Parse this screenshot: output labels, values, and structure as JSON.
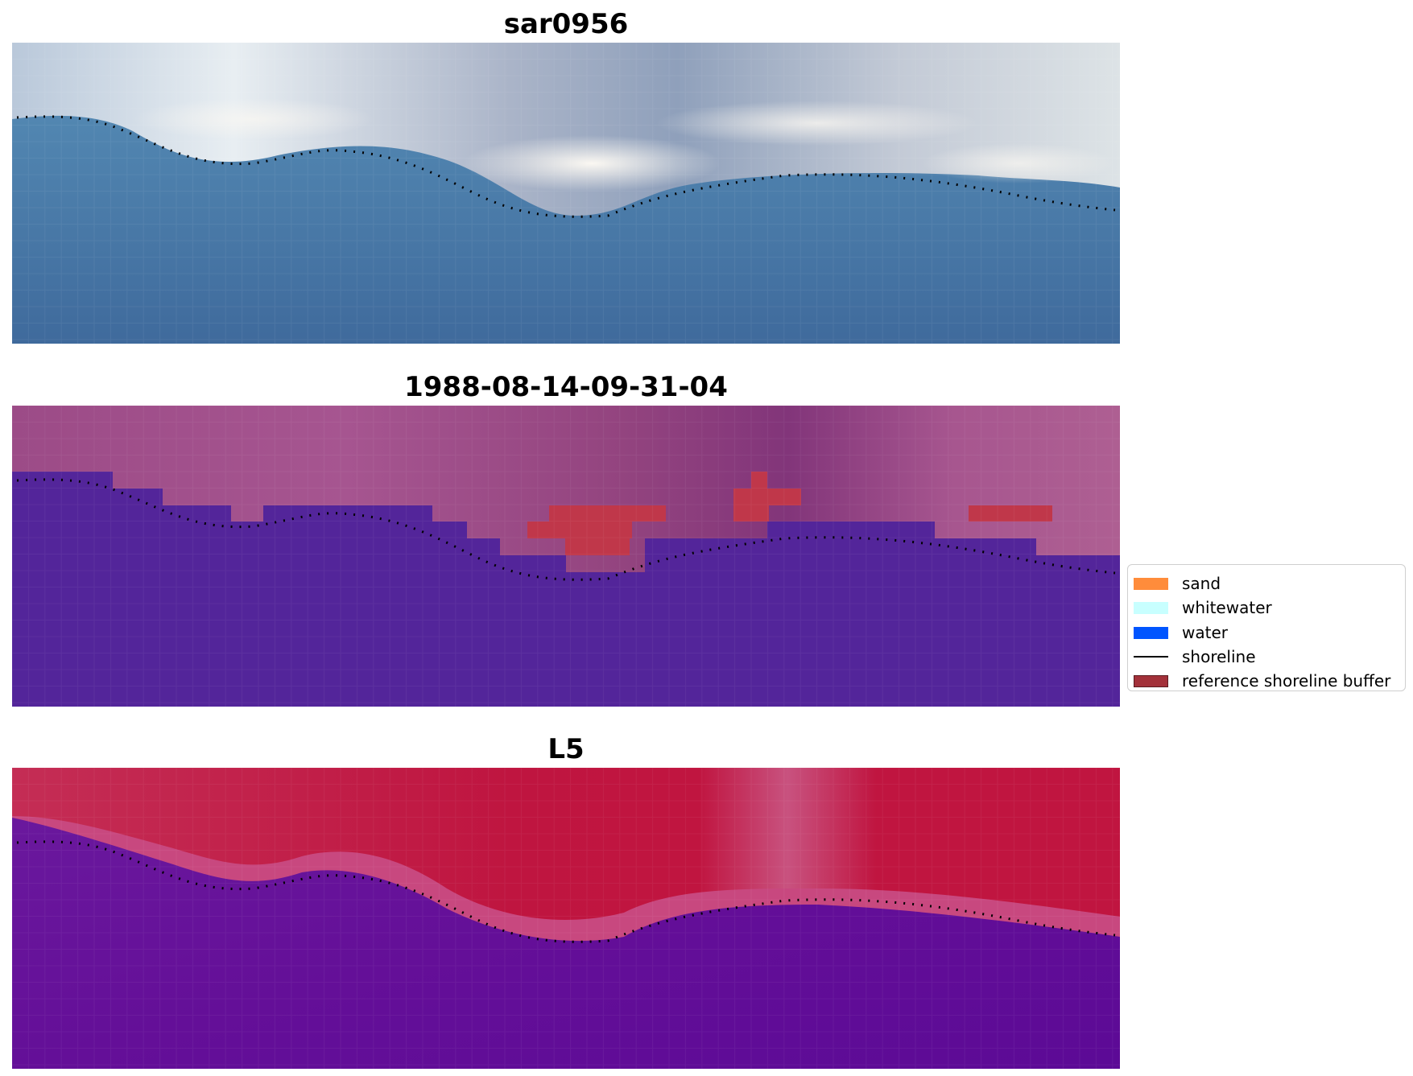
{
  "figure": {
    "panels": [
      {
        "title": "sar0956",
        "kind": "rgb-composite",
        "palette": {
          "land_light": "#e9eef3",
          "land_mid": "#a9b6cc",
          "cloud": "#f6f3ef",
          "water": "#4f83ad",
          "water_deep": "#3f6a9c"
        }
      },
      {
        "title": "1988-08-14-09-31-04",
        "kind": "classified",
        "palette": {
          "land": "#a2508c",
          "land_dark": "#8c3f7c",
          "water": "#53259a",
          "buffer": "#c0374a"
        }
      },
      {
        "title": "L5",
        "kind": "index",
        "palette": {
          "high": "#c01540",
          "mid": "#c6467a",
          "low": "#6a139a",
          "low_dark": "#5c0a96"
        }
      }
    ],
    "shoreline_color": "#000000"
  },
  "legend": {
    "items": [
      {
        "label": "sand",
        "color": "#ff8c3b",
        "type": "patch"
      },
      {
        "label": "whitewater",
        "color": "#c8ffff",
        "type": "patch"
      },
      {
        "label": "water",
        "color": "#0055ff",
        "type": "patch"
      },
      {
        "label": "shoreline",
        "color": "#000000",
        "type": "line"
      },
      {
        "label": "reference shoreline buffer",
        "color": "#a3313a",
        "type": "patch"
      }
    ]
  }
}
